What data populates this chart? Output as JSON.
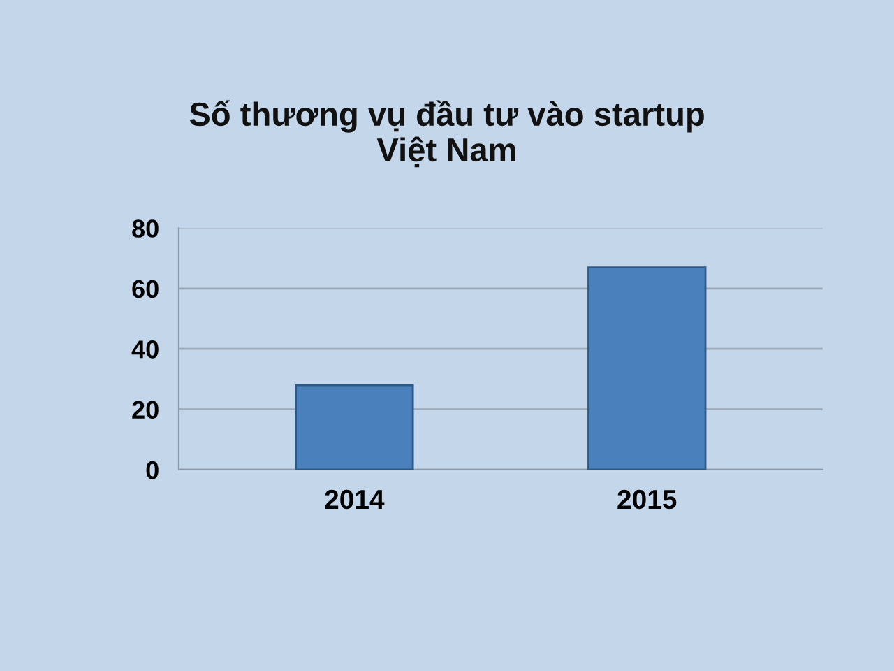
{
  "chart_data": {
    "type": "bar",
    "title": "Số thương vụ đầu tư vào startup\nViệt Nam",
    "categories": [
      "2014",
      "2015"
    ],
    "values": [
      28,
      67
    ],
    "color": "#4a80bb",
    "ylim": [
      0,
      80
    ],
    "yticks": [
      0,
      20,
      40,
      60,
      80
    ],
    "grid": "y"
  }
}
